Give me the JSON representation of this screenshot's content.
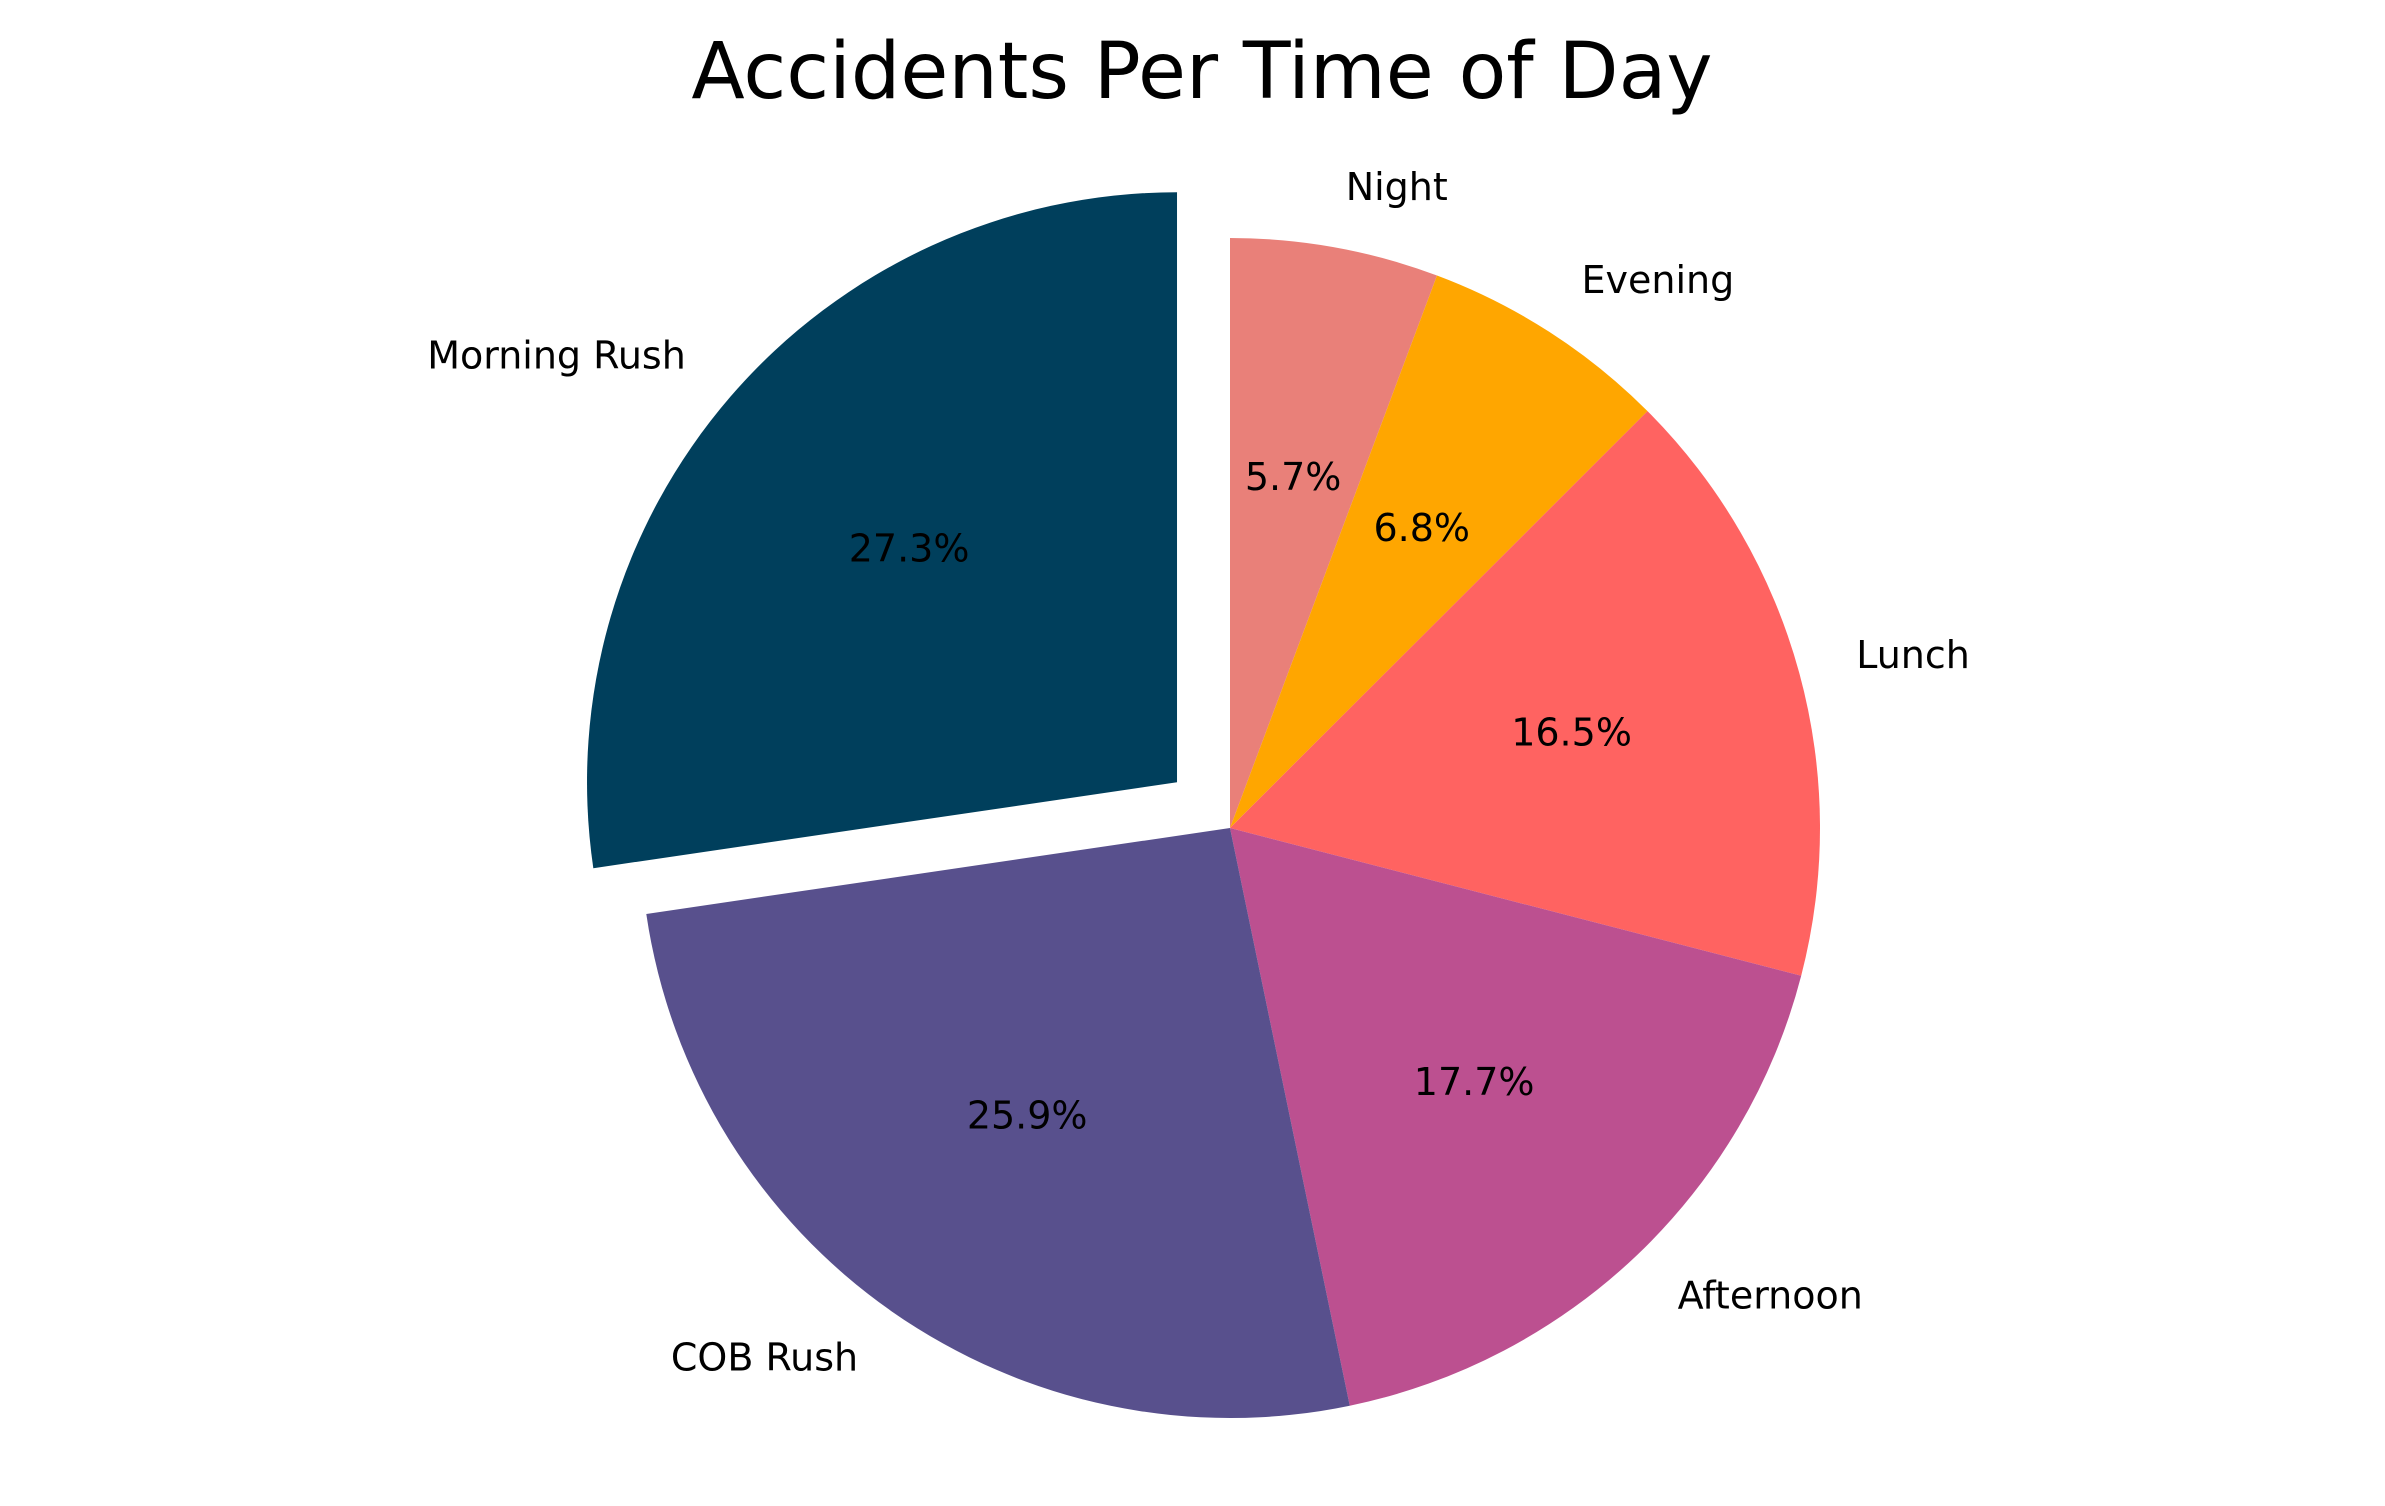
{
  "chart_data": {
    "type": "pie",
    "title": "Accidents Per Time of Day",
    "slices": [
      {
        "label": "Night",
        "value": 5.7,
        "pct_label": "5.7%",
        "color": "#E98079",
        "exploded": false
      },
      {
        "label": "Evening",
        "value": 6.8,
        "pct_label": "6.8%",
        "color": "#FFA600",
        "exploded": false
      },
      {
        "label": "Lunch",
        "value": 16.5,
        "pct_label": "16.5%",
        "color": "#FF6361",
        "exploded": false
      },
      {
        "label": "Afternoon",
        "value": 17.7,
        "pct_label": "17.7%",
        "color": "#BC5090",
        "exploded": false
      },
      {
        "label": "COB Rush",
        "value": 25.9,
        "pct_label": "25.9%",
        "color": "#58508D",
        "exploded": false
      },
      {
        "label": "Morning Rush",
        "value": 27.3,
        "pct_label": "27.3%",
        "color": "#003F5C",
        "exploded": true
      }
    ],
    "start_angle": "12 o'clock",
    "direction": "clockwise",
    "legend": "none",
    "grid": false
  }
}
